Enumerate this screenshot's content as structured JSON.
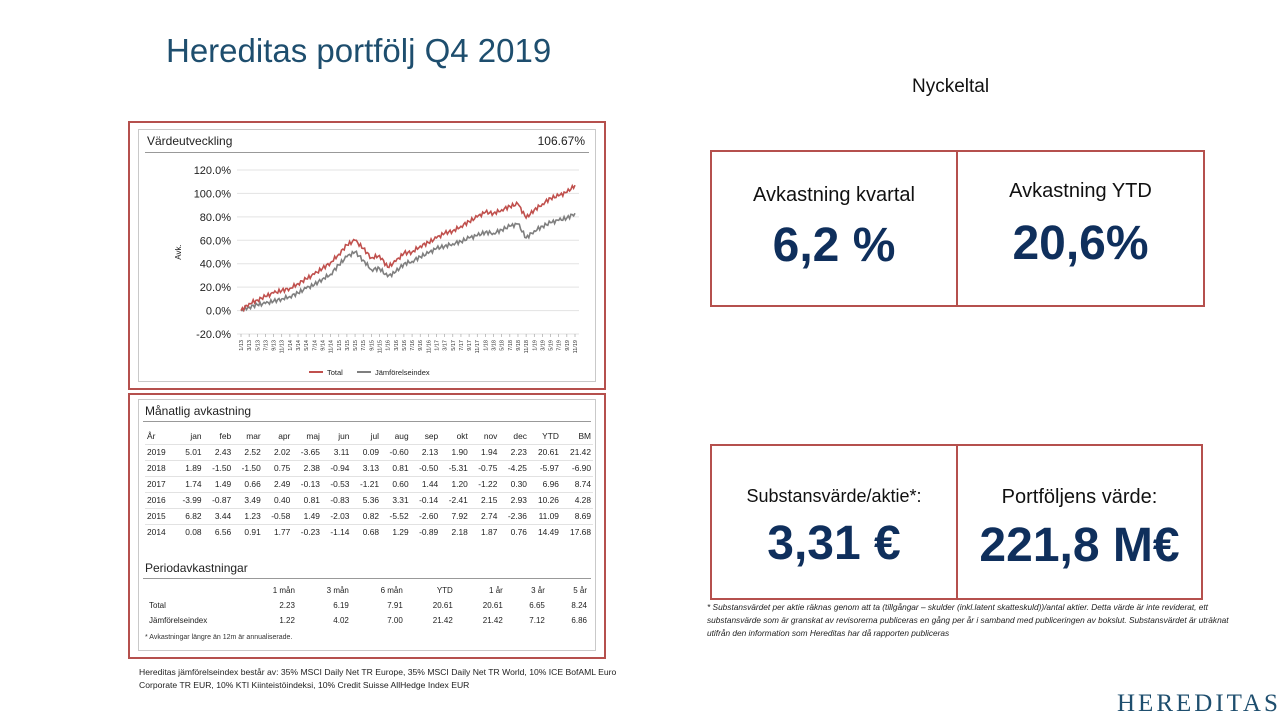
{
  "title": "Hereditas portfölj Q4 2019",
  "nyckeltal_label": "Nyckeltal",
  "kpis": {
    "kvartal": {
      "label": "Avkastning kvartal",
      "value": "6,2 %"
    },
    "ytd": {
      "label": "Avkastning YTD",
      "value": "20,6%"
    },
    "substans": {
      "label": "Substansvärde/aktie*:",
      "value": "3,31 €"
    },
    "portfolj": {
      "label": "Portföljens värde:",
      "value": "221,8 M€"
    }
  },
  "chart_data": {
    "type": "line",
    "title": "Värdeutveckling",
    "headline_value": "106.67%",
    "ylabel": "Avk.",
    "ylim": [
      -20,
      120
    ],
    "yticks": [
      "120.0%",
      "100.0%",
      "80.0%",
      "60.0%",
      "40.0%",
      "20.0%",
      "0.0%",
      "-20.0%"
    ],
    "xticks": [
      "1/13",
      "3/13",
      "5/13",
      "7/13",
      "9/13",
      "11/13",
      "1/14",
      "3/14",
      "5/14",
      "7/14",
      "9/14",
      "11/14",
      "1/15",
      "3/15",
      "5/15",
      "7/15",
      "9/15",
      "11/15",
      "1/16",
      "3/16",
      "5/16",
      "7/16",
      "9/16",
      "11/16",
      "1/17",
      "3/17",
      "5/17",
      "7/17",
      "9/17",
      "11/17",
      "1/18",
      "3/18",
      "5/18",
      "7/18",
      "9/18",
      "11/18",
      "1/19",
      "3/19",
      "5/19",
      "7/19",
      "9/19",
      "11/19"
    ],
    "series": [
      {
        "name": "Total",
        "color": "#c0504d",
        "values": [
          0,
          6,
          9,
          12,
          15,
          17,
          19,
          23,
          27,
          31,
          36,
          41,
          48,
          56,
          60,
          53,
          45,
          47,
          37,
          42,
          49,
          50,
          55,
          58,
          62,
          66,
          68,
          72,
          76,
          80,
          84,
          83,
          86,
          89,
          91,
          79,
          86,
          91,
          96,
          98,
          101,
          107
        ]
      },
      {
        "name": "Jämförelseindex",
        "color": "#7f7f7f",
        "values": [
          0,
          3,
          5,
          6,
          8,
          10,
          12,
          15,
          19,
          22,
          27,
          31,
          39,
          46,
          50,
          43,
          35,
          36,
          29,
          33,
          40,
          42,
          46,
          49,
          53,
          55,
          57,
          59,
          62,
          64,
          67,
          66,
          69,
          72,
          74,
          62,
          68,
          72,
          75,
          77,
          79,
          83
        ]
      }
    ]
  },
  "monthly": {
    "title": "Månatlig avkastning",
    "headers": [
      "År",
      "jan",
      "feb",
      "mar",
      "apr",
      "maj",
      "jun",
      "jul",
      "aug",
      "sep",
      "okt",
      "nov",
      "dec",
      "YTD",
      "BM"
    ],
    "rows": [
      [
        "2019",
        "5.01",
        "2.43",
        "2.52",
        "2.02",
        "-3.65",
        "3.11",
        "0.09",
        "-0.60",
        "2.13",
        "1.90",
        "1.94",
        "2.23",
        "20.61",
        "21.42"
      ],
      [
        "2018",
        "1.89",
        "-1.50",
        "-1.50",
        "0.75",
        "2.38",
        "-0.94",
        "3.13",
        "0.81",
        "-0.50",
        "-5.31",
        "-0.75",
        "-4.25",
        "-5.97",
        "-6.90"
      ],
      [
        "2017",
        "1.74",
        "1.49",
        "0.66",
        "2.49",
        "-0.13",
        "-0.53",
        "-1.21",
        "0.60",
        "1.44",
        "1.20",
        "-1.22",
        "0.30",
        "6.96",
        "8.74"
      ],
      [
        "2016",
        "-3.99",
        "-0.87",
        "3.49",
        "0.40",
        "0.81",
        "-0.83",
        "5.36",
        "3.31",
        "-0.14",
        "-2.41",
        "2.15",
        "2.93",
        "10.26",
        "4.28"
      ],
      [
        "2015",
        "6.82",
        "3.44",
        "1.23",
        "-0.58",
        "1.49",
        "-2.03",
        "0.82",
        "-5.52",
        "-2.60",
        "7.92",
        "2.74",
        "-2.36",
        "11.09",
        "8.69"
      ],
      [
        "2014",
        "0.08",
        "6.56",
        "0.91",
        "1.77",
        "-0.23",
        "-1.14",
        "0.68",
        "1.29",
        "-0.89",
        "2.18",
        "1.87",
        "0.76",
        "14.49",
        "17.68"
      ]
    ]
  },
  "period": {
    "title": "Periodavkastningar",
    "headers": [
      "",
      "1 mån",
      "3 mån",
      "6 mån",
      "YTD",
      "1 år",
      "3 år",
      "5 år"
    ],
    "rows": [
      [
        "Total",
        "2.23",
        "6.19",
        "7.91",
        "20.61",
        "20.61",
        "6.65",
        "8.24"
      ],
      [
        "Jämförelseindex",
        "1.22",
        "4.02",
        "7.00",
        "21.42",
        "21.42",
        "7.12",
        "6.86"
      ]
    ],
    "note": "* Avkastningar längre än 12m är annualiserade."
  },
  "benchmark_note": "Hereditas jämförelseindex består av: 35% MSCI Daily Net TR Europe, 35% MSCI Daily Net TR World, 10% ICE BofAML Euro Corporate TR EUR, 10% KTI Kiinteistöindeksi, 10% Credit Suisse AllHedge Index EUR",
  "substans_note": "* Substansvärdet per aktie räknas genom att ta (tillgångar – skulder (inkl.latent skatteskuld))/antal aktier. Detta värde är inte reviderat, ett substansvärde som är granskat av revisorerna publiceras en gång per år i samband med publiceringen av bokslut. Substansvärdet är uträknat utifrån den information som Hereditas har då rapporten publiceras",
  "logo": "HEREDITAS"
}
